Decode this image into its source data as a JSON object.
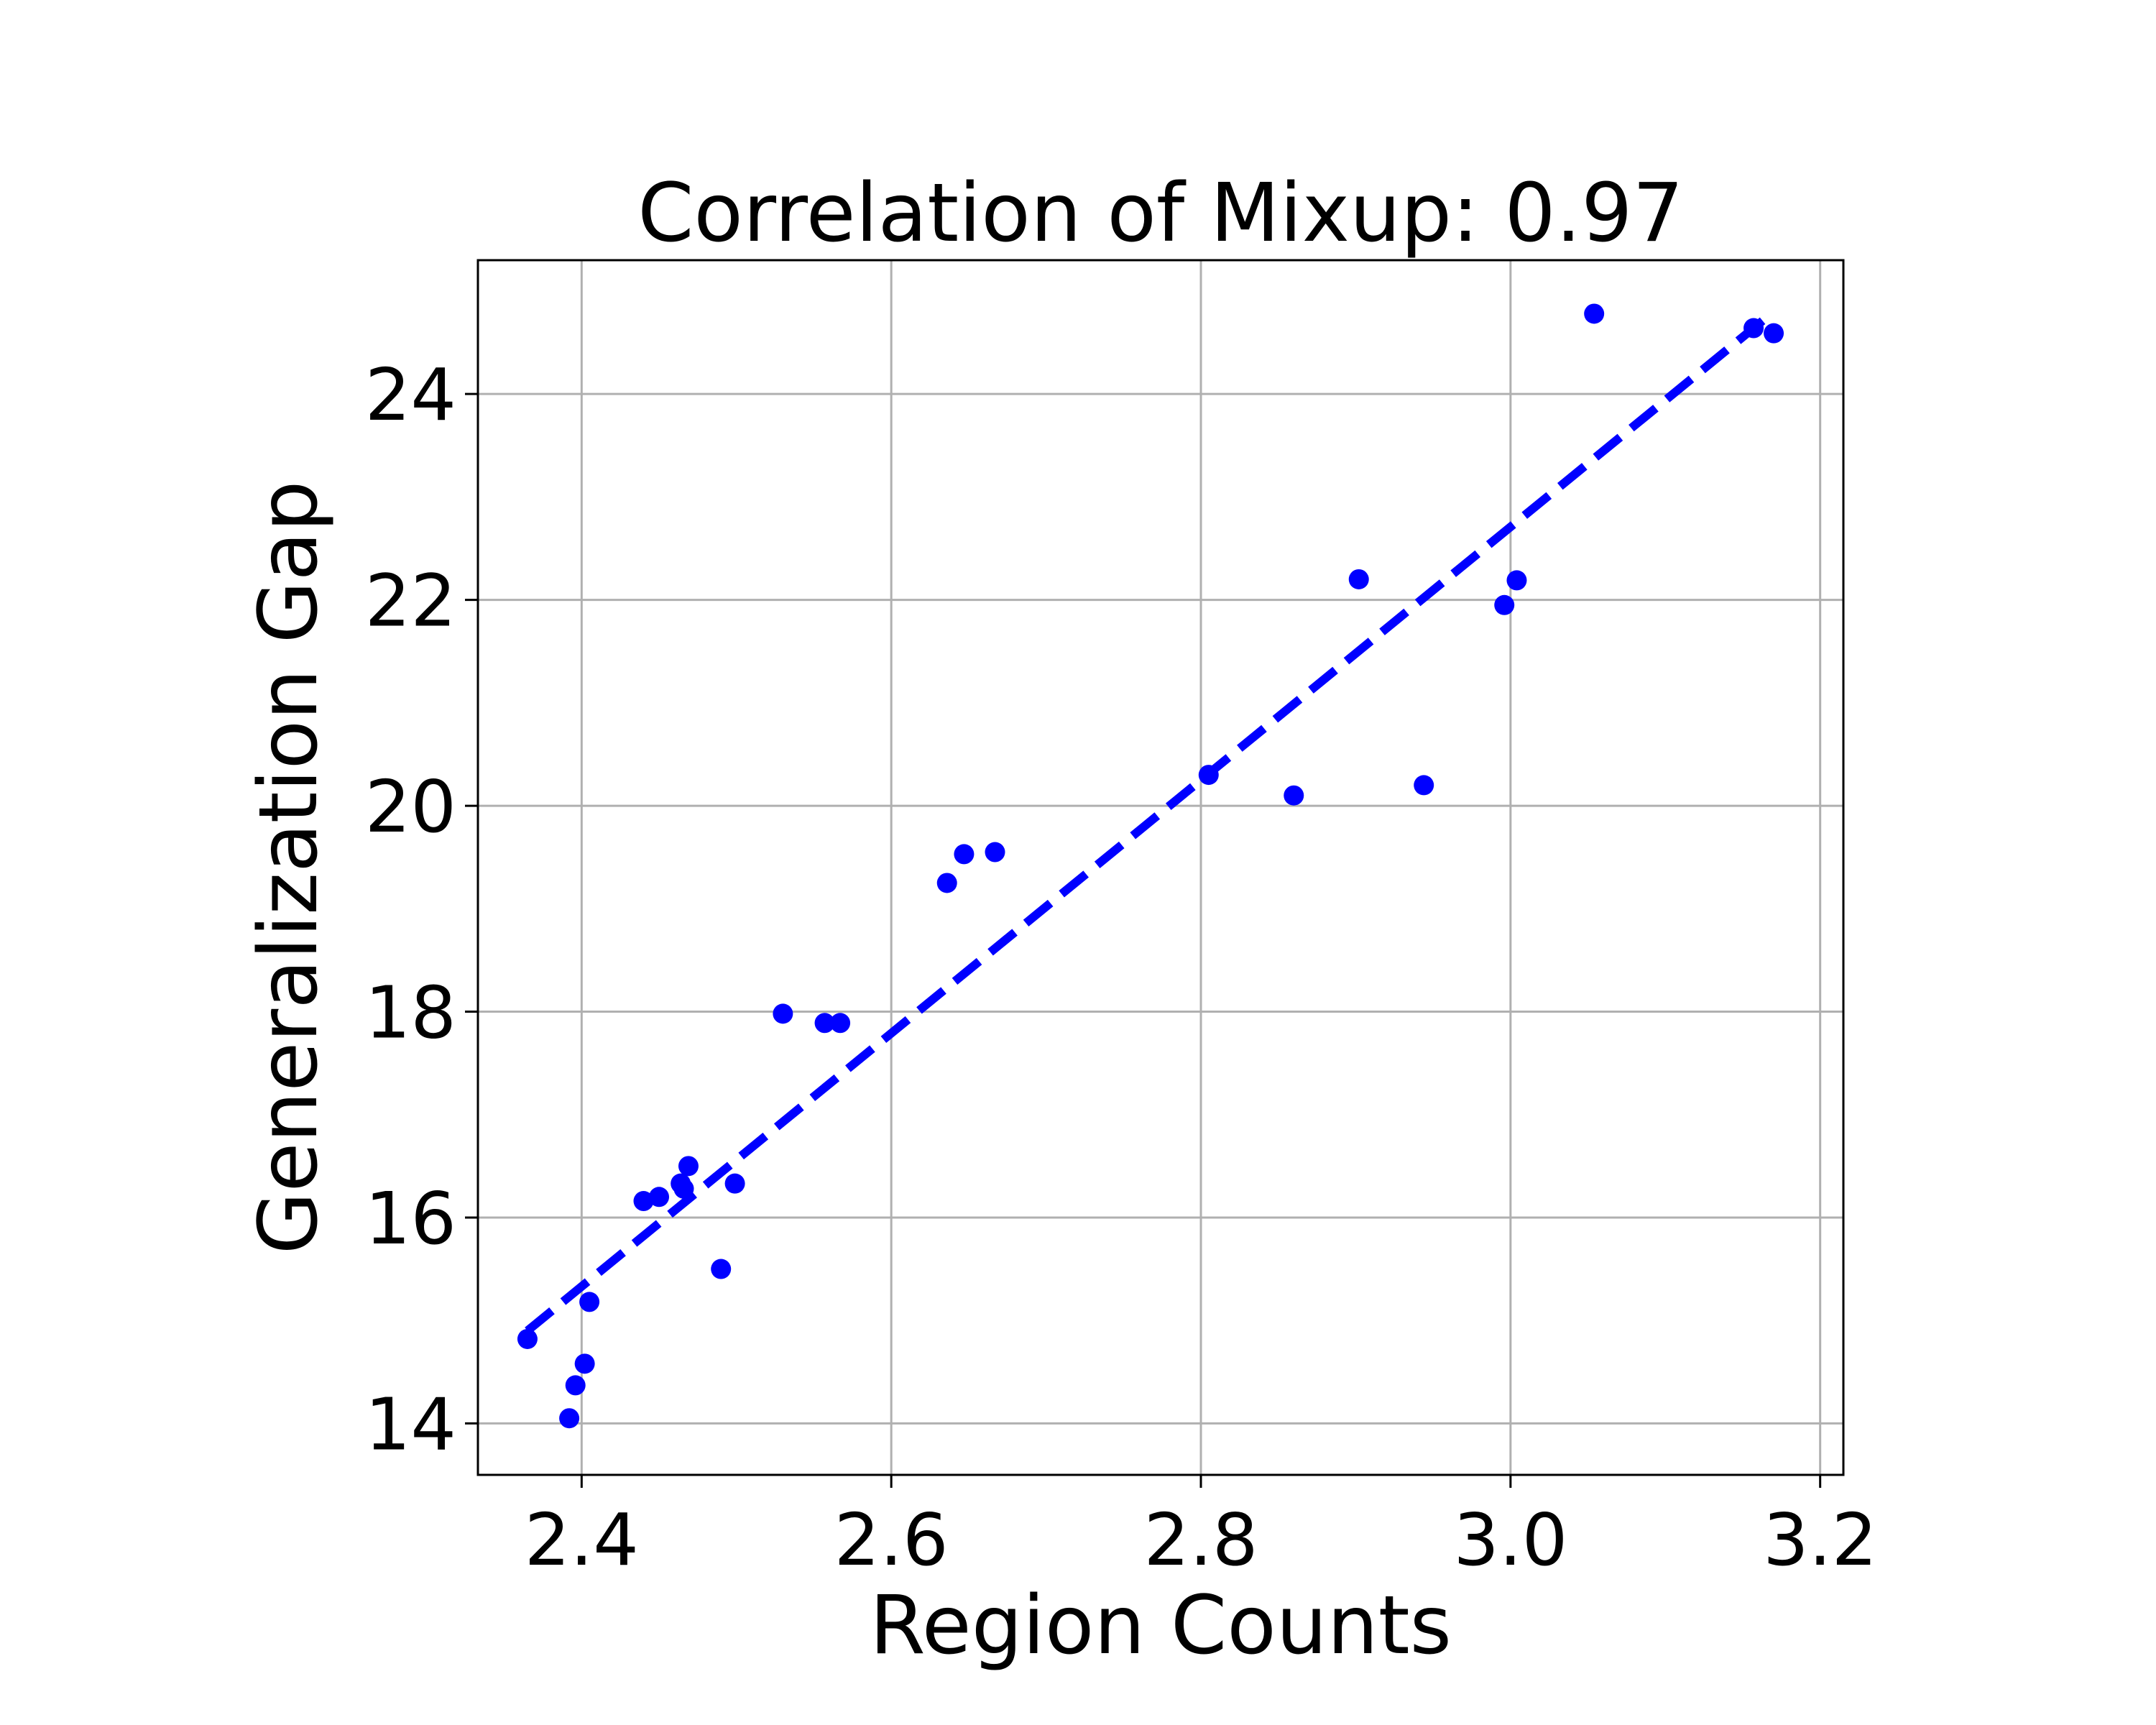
{
  "chart_data": {
    "type": "scatter",
    "title": "Correlation of Mixup: 0.97",
    "xlabel": "Region Counts",
    "ylabel": "Generalization Gap",
    "xlim": [
      2.333,
      3.215
    ],
    "ylim": [
      13.5,
      25.3
    ],
    "xticks": [
      2.4,
      2.6,
      2.8,
      3.0,
      3.2
    ],
    "xtick_labels": [
      "2.4",
      "2.6",
      "2.8",
      "3.0",
      "3.2"
    ],
    "yticks": [
      14,
      16,
      18,
      20,
      22,
      24
    ],
    "ytick_labels": [
      "14",
      "16",
      "18",
      "20",
      "22",
      "24"
    ],
    "grid": true,
    "legend": "none",
    "colors": {
      "points": "#0000ff",
      "fit_line": "#0000ff",
      "grid": "#b0b0b0",
      "axes": "#000000"
    },
    "points": [
      {
        "x": 2.365,
        "y": 14.82
      },
      {
        "x": 2.392,
        "y": 14.05
      },
      {
        "x": 2.396,
        "y": 14.37
      },
      {
        "x": 2.402,
        "y": 14.58
      },
      {
        "x": 2.405,
        "y": 15.18
      },
      {
        "x": 2.44,
        "y": 16.16
      },
      {
        "x": 2.45,
        "y": 16.2
      },
      {
        "x": 2.464,
        "y": 16.33
      },
      {
        "x": 2.466,
        "y": 16.28
      },
      {
        "x": 2.469,
        "y": 16.5
      },
      {
        "x": 2.49,
        "y": 15.5
      },
      {
        "x": 2.499,
        "y": 16.33
      },
      {
        "x": 2.53,
        "y": 17.98
      },
      {
        "x": 2.557,
        "y": 17.89
      },
      {
        "x": 2.567,
        "y": 17.89
      },
      {
        "x": 2.636,
        "y": 19.25
      },
      {
        "x": 2.647,
        "y": 19.53
      },
      {
        "x": 2.667,
        "y": 19.55
      },
      {
        "x": 2.805,
        "y": 20.3
      },
      {
        "x": 2.86,
        "y": 20.1
      },
      {
        "x": 2.902,
        "y": 22.2
      },
      {
        "x": 2.944,
        "y": 20.2
      },
      {
        "x": 2.996,
        "y": 21.95
      },
      {
        "x": 3.004,
        "y": 22.19
      },
      {
        "x": 3.054,
        "y": 24.78
      },
      {
        "x": 3.157,
        "y": 24.64
      },
      {
        "x": 3.17,
        "y": 24.59
      }
    ],
    "fit_line": {
      "style": "dashed",
      "x": [
        2.365,
        3.17
      ],
      "y": [
        14.9,
        24.8
      ]
    }
  }
}
